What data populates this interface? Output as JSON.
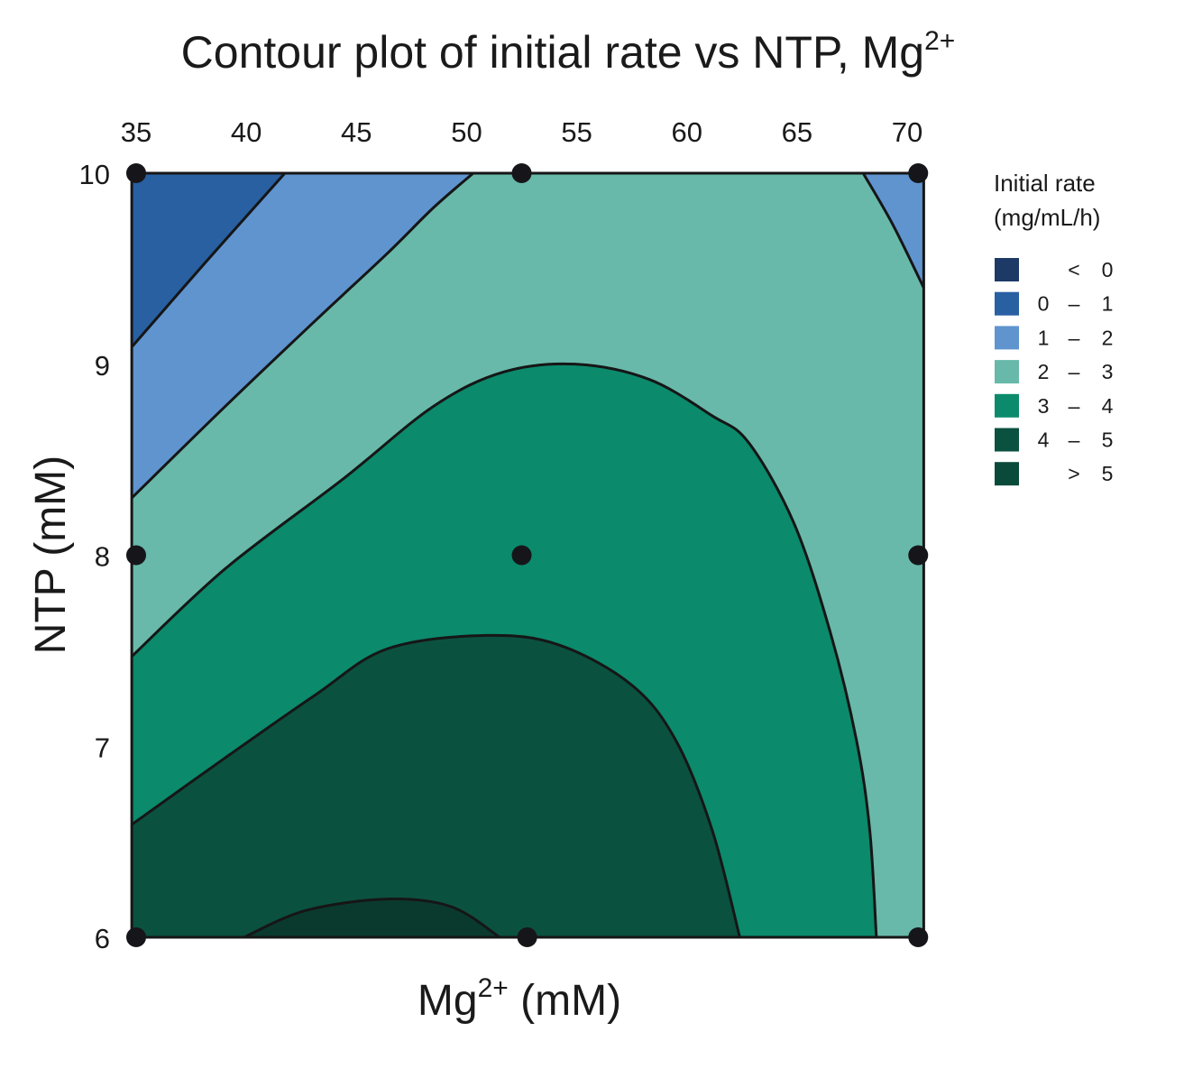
{
  "chart_data": {
    "type": "contour",
    "title": "Contour plot of initial rate vs NTP, Mg",
    "title_sup": "2+",
    "xlabel": "Mg",
    "xlabel_sup": "2+",
    "xlabel_unit": " (mM)",
    "ylabel": "NTP (mM)",
    "x_axis_position": "top",
    "xlim": [
      34.8,
      70.75
    ],
    "ylim": [
      6,
      10
    ],
    "xticks": [
      35,
      40,
      45,
      50,
      55,
      60,
      65,
      70
    ],
    "yticks": [
      6,
      7,
      8,
      9,
      10
    ],
    "grid": false,
    "legend": {
      "placement": "right",
      "title_line1": "Initial rate",
      "title_line2": "(mg/mL/h)",
      "entries": [
        {
          "lo": "",
          "sep": "<",
          "hi": "0",
          "color": "#1d3a66"
        },
        {
          "lo": "0",
          "sep": "–",
          "hi": "1",
          "color": "#2860a2"
        },
        {
          "lo": "1",
          "sep": "–",
          "hi": "2",
          "color": "#5f94cf"
        },
        {
          "lo": "2",
          "sep": "–",
          "hi": "3",
          "color": "#68b9aa"
        },
        {
          "lo": "3",
          "sep": "–",
          "hi": "4",
          "color": "#0b8a6c"
        },
        {
          "lo": "4",
          "sep": "–",
          "hi": "5",
          "color": "#0b5140"
        },
        {
          "lo": "",
          "sep": ">",
          "hi": "5",
          "color": "#0a4a3a"
        }
      ]
    },
    "background_band": {
      "range": "2 – 3",
      "color": "#68b9aa"
    },
    "regions": [
      {
        "range": "1 – 2",
        "color": "#5f94cf",
        "close": "top-left",
        "boundary_level": 2,
        "line": [
          [
            34.8,
            8.3
          ],
          [
            39.05,
            8.78
          ],
          [
            43.15,
            9.23
          ],
          [
            46.4,
            9.58
          ],
          [
            48.5,
            9.82
          ],
          [
            50.3,
            10
          ]
        ]
      },
      {
        "range": "1 – 2",
        "color": "#5f94cf",
        "close": "top-right",
        "boundary_level": 2,
        "line": [
          [
            68.0,
            10
          ],
          [
            69.35,
            9.73
          ],
          [
            70.75,
            9.4
          ]
        ]
      },
      {
        "range": "0 – 1",
        "color": "#2860a2",
        "close": "top-left",
        "boundary_level": 1,
        "line": [
          [
            34.8,
            9.09
          ],
          [
            38.2,
            9.54
          ],
          [
            41.75,
            10
          ]
        ]
      },
      {
        "range": "3 – 4",
        "color": "#0b8a6c",
        "close": "bottom-left",
        "boundary_level": 3,
        "line": [
          [
            34.8,
            7.47
          ],
          [
            39.05,
            7.93
          ],
          [
            44.4,
            8.4
          ],
          [
            48.5,
            8.78
          ],
          [
            51.7,
            8.96
          ],
          [
            55.0,
            9.0
          ],
          [
            58.3,
            8.92
          ],
          [
            61.15,
            8.73
          ],
          [
            62.8,
            8.59
          ],
          [
            64.85,
            8.17
          ],
          [
            66.5,
            7.6
          ],
          [
            67.7,
            7.03
          ],
          [
            68.3,
            6.56
          ],
          [
            68.6,
            6.0
          ]
        ]
      },
      {
        "range": "4 – 5",
        "color": "#0b5140",
        "close": "bottom-left",
        "boundary_level": 4,
        "line": [
          [
            34.8,
            6.59
          ],
          [
            39.05,
            6.94
          ],
          [
            43.15,
            7.27
          ],
          [
            46.4,
            7.51
          ],
          [
            50.9,
            7.58
          ],
          [
            54.2,
            7.53
          ],
          [
            57.5,
            7.32
          ],
          [
            59.5,
            7.03
          ],
          [
            61.15,
            6.56
          ],
          [
            62.4,
            6.0
          ]
        ]
      },
      {
        "range": "> 5",
        "color": "#0a3a2e",
        "close": "bottom",
        "boundary_level": 5,
        "line": [
          [
            39.9,
            6.0
          ],
          [
            42.7,
            6.14
          ],
          [
            46.4,
            6.2
          ],
          [
            49.3,
            6.16
          ],
          [
            51.5,
            6.0
          ]
        ]
      }
    ],
    "design_points": [
      [
        35,
        10
      ],
      [
        52.5,
        10
      ],
      [
        70.5,
        10
      ],
      [
        35,
        8
      ],
      [
        52.5,
        8
      ],
      [
        70.5,
        8
      ],
      [
        35,
        6
      ],
      [
        52.75,
        6
      ],
      [
        70.5,
        6
      ]
    ]
  }
}
